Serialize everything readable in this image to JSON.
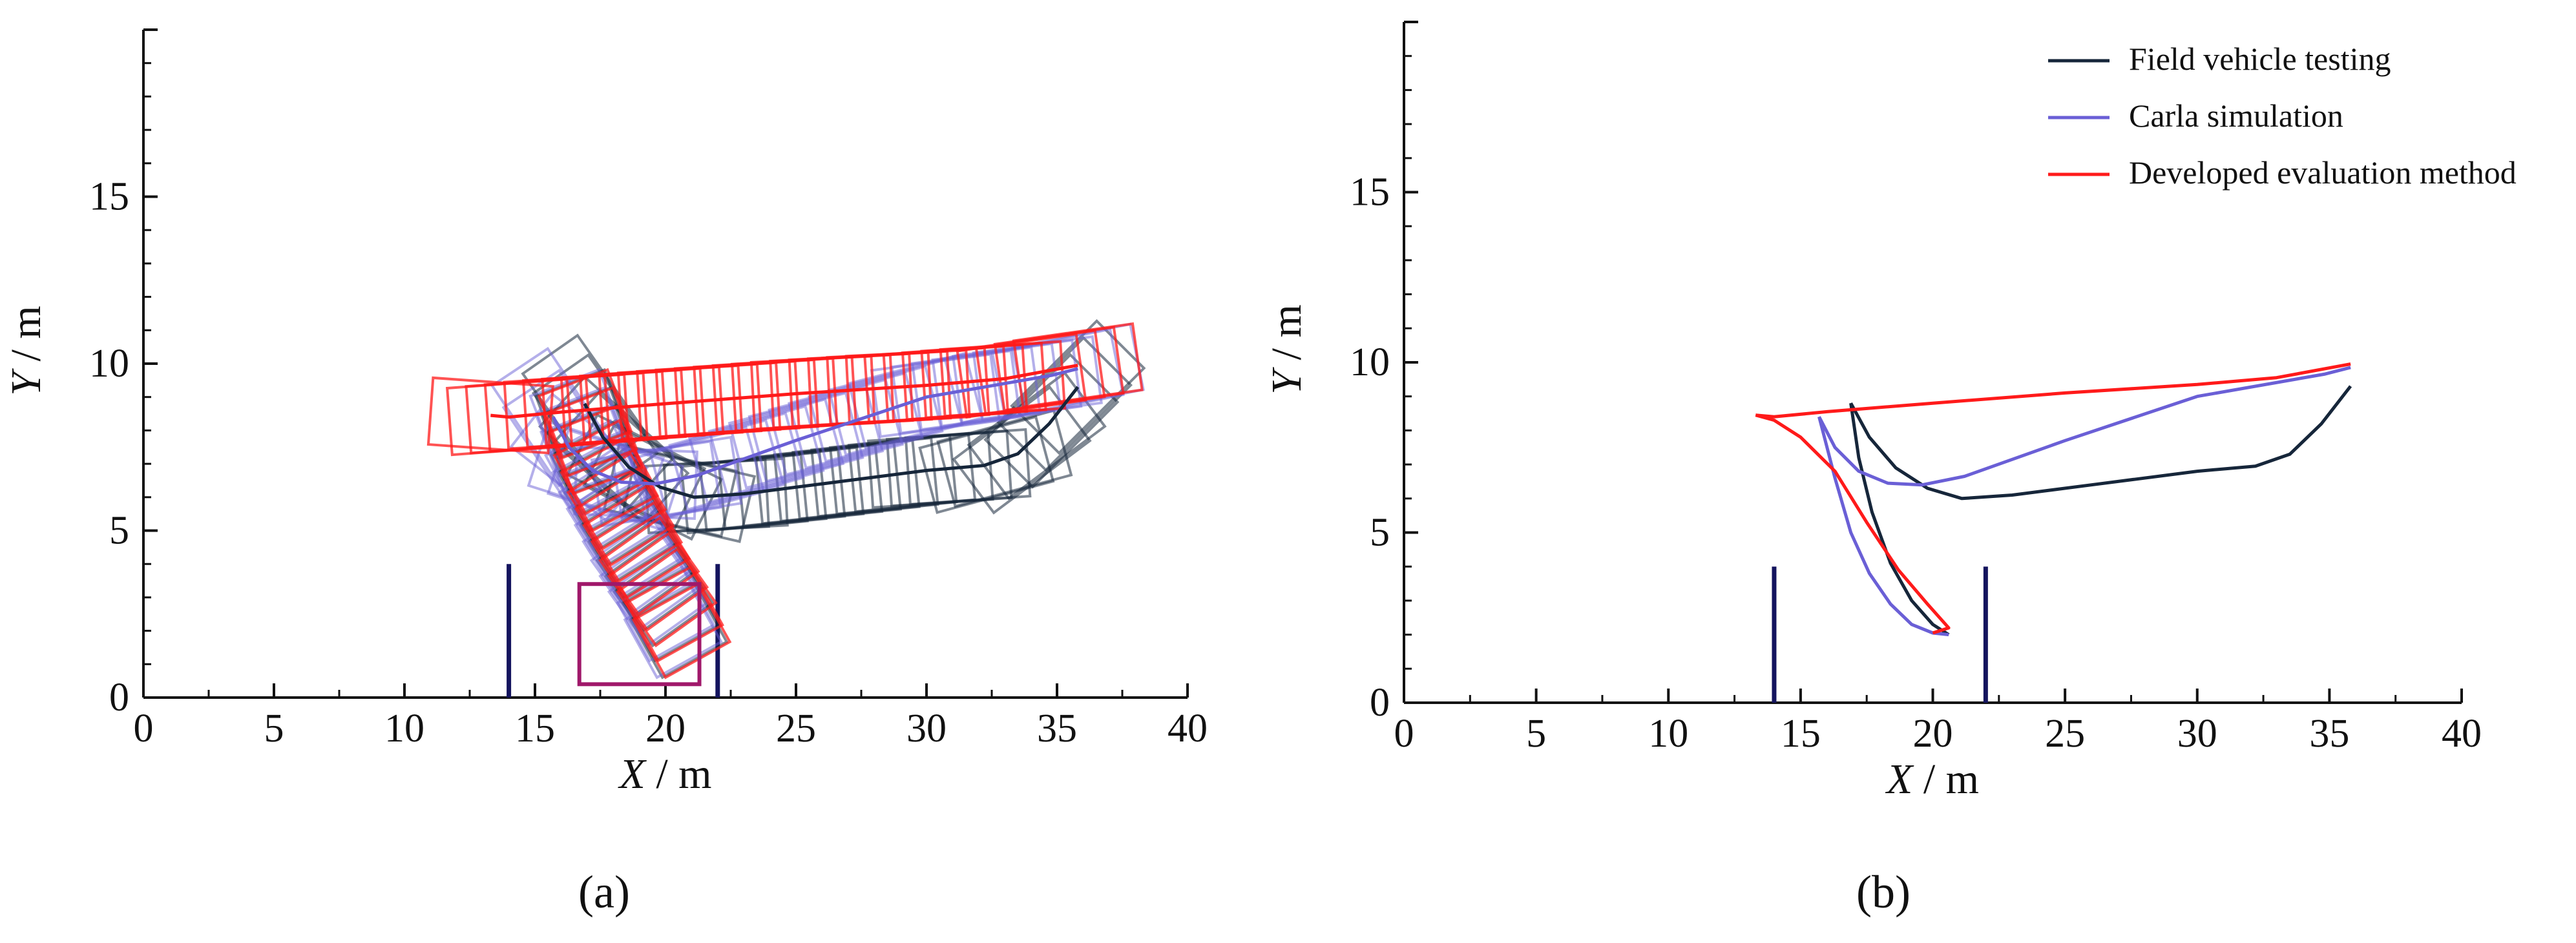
{
  "colors": {
    "field": "#16263a",
    "carla": "#6a5fd6",
    "developed": "#ff1a1a",
    "slot": "#14145e",
    "axis": "#111111"
  },
  "chart_data": [
    {
      "type": "line",
      "panel_label": "(a)",
      "xlabel_italic": "X",
      "xlabel_unit": " / m",
      "ylabel_italic": "Y",
      "ylabel_unit": " / m",
      "xlim": [
        0,
        40
      ],
      "ylim": [
        0,
        20
      ],
      "x_ticks": [
        0,
        5,
        10,
        15,
        20,
        25,
        30,
        35,
        40
      ],
      "y_ticks": [
        0,
        5,
        10,
        15
      ],
      "parking_slot_lines_x": [
        14,
        22
      ],
      "parking_slot_height": 4,
      "grid": false,
      "series": [
        {
          "key": "field",
          "x": [
            16.9,
            17.6,
            18.6,
            19.8,
            21.1,
            23,
            26,
            30,
            32.2,
            33.5,
            34.7,
            35.8
          ],
          "y": [
            8.8,
            7.8,
            6.9,
            6.3,
            6,
            6.1,
            6.4,
            6.8,
            6.95,
            7.3,
            8.2,
            9.3
          ]
        },
        {
          "key": "carla",
          "x": [
            15.7,
            16.3,
            17.2,
            18.3,
            19.6,
            21.2,
            25,
            30,
            34.8,
            35.8
          ],
          "y": [
            8.4,
            7.5,
            6.8,
            6.45,
            6.4,
            6.65,
            7.7,
            9.0,
            9.65,
            9.85
          ]
        },
        {
          "key": "developed",
          "x": [
            13.3,
            14,
            16,
            20,
            25,
            30,
            33,
            35.8
          ],
          "y": [
            8.45,
            8.4,
            8.55,
            8.8,
            9.1,
            9.35,
            9.55,
            9.95
          ]
        }
      ]
    },
    {
      "type": "line",
      "panel_label": "(b)",
      "xlabel_italic": "X",
      "xlabel_unit": " / m",
      "ylabel_italic": "Y",
      "ylabel_unit": " / m",
      "xlim": [
        0,
        40
      ],
      "ylim": [
        0,
        20
      ],
      "x_ticks": [
        0,
        5,
        10,
        15,
        20,
        25,
        30,
        35,
        40
      ],
      "y_ticks": [
        0,
        5,
        10,
        15
      ],
      "parking_slot_lines_x": [
        14,
        22
      ],
      "parking_slot_height": 4,
      "grid": false,
      "legend_position": "top-right",
      "series": [
        {
          "name": "Field vehicle testing",
          "key": "field",
          "segments": [
            {
              "x": [
                16.9,
                17.2,
                17.7,
                18.4,
                19.2,
                20.0,
                20.6
              ],
              "y": [
                8.8,
                7.2,
                5.6,
                4.1,
                3.0,
                2.3,
                2.0
              ]
            },
            {
              "x": [
                16.9,
                17.6,
                18.6,
                19.8,
                21.1,
                23,
                26,
                30,
                32.2,
                33.5,
                34.7,
                35.8
              ],
              "y": [
                8.8,
                7.8,
                6.9,
                6.3,
                6,
                6.1,
                6.4,
                6.8,
                6.95,
                7.3,
                8.2,
                9.3
              ]
            }
          ]
        },
        {
          "name": "Carla simulation",
          "key": "carla",
          "segments": [
            {
              "x": [
                15.7,
                16.3,
                16.9,
                17.6,
                18.4,
                19.2,
                20.0,
                20.6
              ],
              "y": [
                8.4,
                6.6,
                5.0,
                3.8,
                2.9,
                2.3,
                2.05,
                2.0
              ]
            },
            {
              "x": [
                15.7,
                16.3,
                17.2,
                18.3,
                19.6,
                21.2,
                25,
                30,
                34.8,
                35.8
              ],
              "y": [
                8.4,
                7.5,
                6.8,
                6.45,
                6.4,
                6.65,
                7.7,
                9.0,
                9.65,
                9.85
              ]
            }
          ]
        },
        {
          "name": "Developed evaluation method",
          "key": "developed",
          "segments": [
            {
              "x": [
                13.3,
                14.0,
                15.0,
                16.3,
                17.5,
                18.7,
                19.8,
                20.6,
                20.0
              ],
              "y": [
                8.45,
                8.3,
                7.8,
                6.8,
                5.3,
                3.9,
                2.9,
                2.2,
                2.05
              ]
            },
            {
              "x": [
                13.3,
                14,
                16,
                20,
                25,
                30,
                33,
                35.8
              ],
              "y": [
                8.45,
                8.4,
                8.55,
                8.8,
                9.1,
                9.35,
                9.55,
                9.95
              ]
            }
          ]
        }
      ]
    }
  ]
}
